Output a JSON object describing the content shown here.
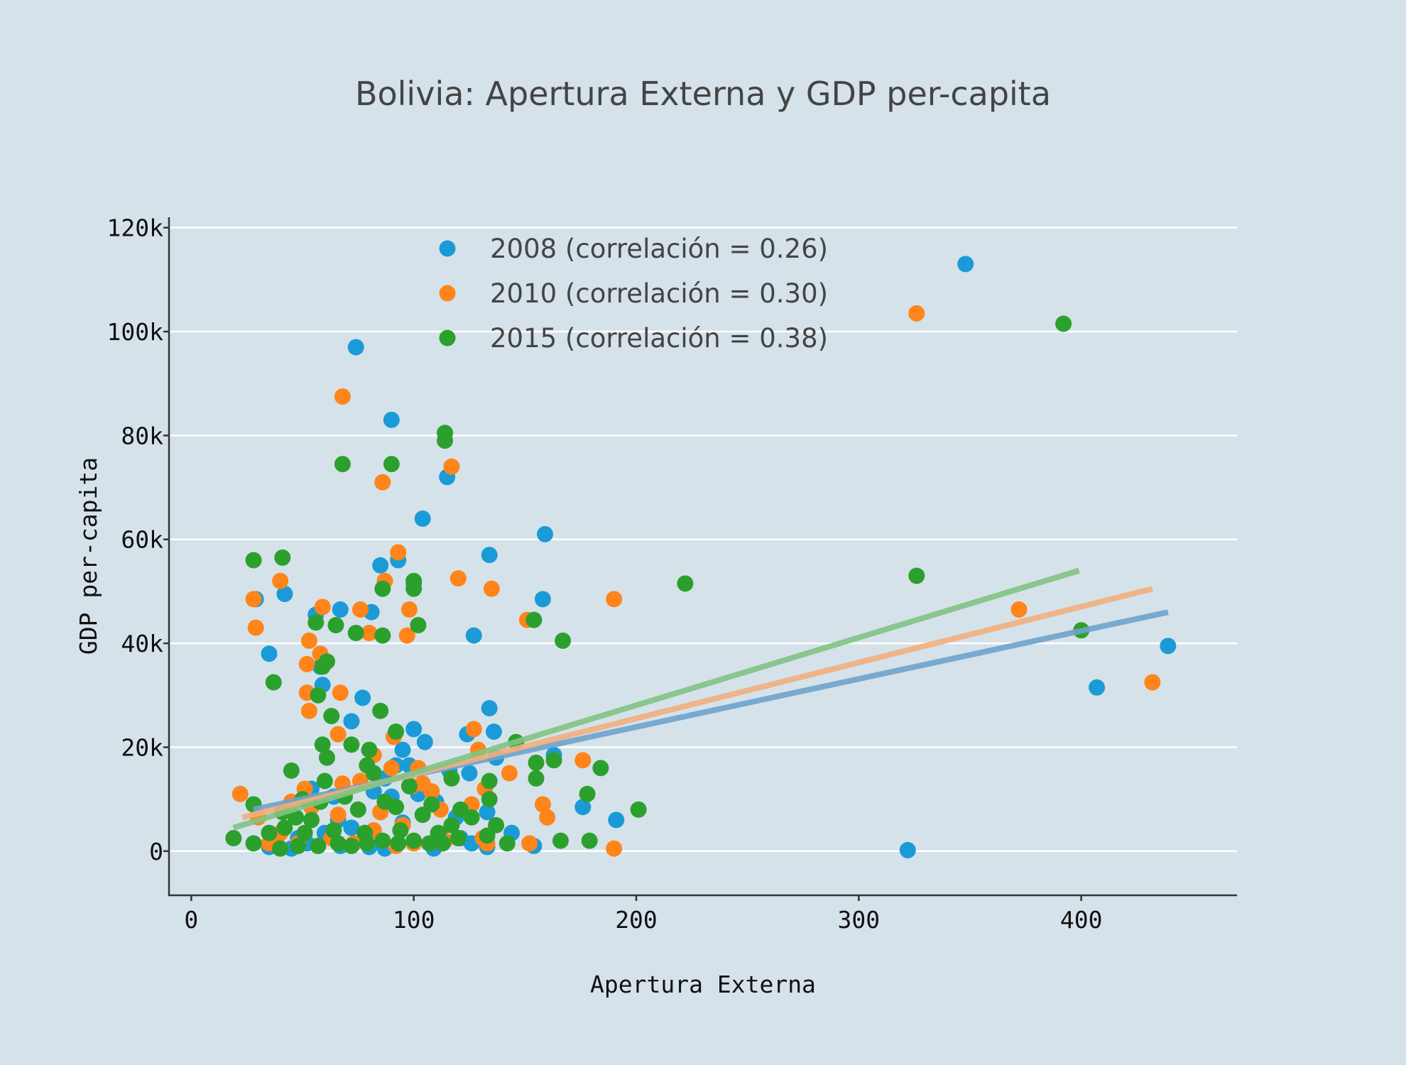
{
  "chart_data": {
    "type": "scatter",
    "title": "Bolivia: Apertura Externa y GDP per-capita",
    "xlabel": "Apertura Externa",
    "ylabel": "GDP per-capita",
    "xlim": [
      -10,
      470
    ],
    "ylim": [
      -8500,
      122000
    ],
    "xticks": [
      0,
      100,
      200,
      300,
      400
    ],
    "xtick_labels": [
      "0",
      "100",
      "200",
      "300",
      "400"
    ],
    "yticks": [
      0,
      20000,
      40000,
      60000,
      80000,
      100000,
      120000
    ],
    "ytick_labels": [
      "0",
      "20k",
      "40k",
      "60k",
      "80k",
      "100k",
      "120k"
    ],
    "grid": "horizontal",
    "legend_position": "top-center",
    "series": [
      {
        "name": "2008 (correlación = 0.26)",
        "color": "#1a9bd7",
        "trend_color": "#6fa3cc",
        "trend": [
          [
            28,
            8000
          ],
          [
            439,
            46000
          ]
        ],
        "points": [
          [
            74,
            97000
          ],
          [
            90,
            83000
          ],
          [
            115,
            72000
          ],
          [
            104,
            64000
          ],
          [
            159,
            61000
          ],
          [
            134,
            57000
          ],
          [
            85,
            55000
          ],
          [
            93,
            56000
          ],
          [
            100,
            51500
          ],
          [
            29,
            48500
          ],
          [
            42,
            49500
          ],
          [
            56,
            45500
          ],
          [
            67,
            46500
          ],
          [
            81,
            46000
          ],
          [
            158,
            48500
          ],
          [
            127,
            41500
          ],
          [
            35,
            38000
          ],
          [
            58,
            35500
          ],
          [
            59,
            32000
          ],
          [
            77,
            29500
          ],
          [
            72,
            25000
          ],
          [
            134,
            27500
          ],
          [
            136,
            23000
          ],
          [
            100,
            23500
          ],
          [
            105,
            21000
          ],
          [
            124,
            22500
          ],
          [
            95,
            19500
          ],
          [
            92,
            16500
          ],
          [
            98,
            16500
          ],
          [
            116,
            15500
          ],
          [
            125,
            15000
          ],
          [
            137,
            18000
          ],
          [
            163,
            18500
          ],
          [
            87,
            14000
          ],
          [
            54,
            12000
          ],
          [
            64,
            10500
          ],
          [
            82,
            11500
          ],
          [
            90,
            10500
          ],
          [
            102,
            11000
          ],
          [
            110,
            9500
          ],
          [
            176,
            8500
          ],
          [
            191,
            6000
          ],
          [
            133,
            7500
          ],
          [
            119,
            6500
          ],
          [
            95,
            5500
          ],
          [
            72,
            4500
          ],
          [
            60,
            3500
          ],
          [
            48,
            2500
          ],
          [
            38,
            2000
          ],
          [
            52,
            1500
          ],
          [
            67,
            1000
          ],
          [
            80,
            800
          ],
          [
            87,
            500
          ],
          [
            109,
            500
          ],
          [
            126,
            1500
          ],
          [
            133,
            800
          ],
          [
            144,
            3500
          ],
          [
            154,
            1000
          ],
          [
            66,
            6000
          ],
          [
            112,
            3000
          ],
          [
            121,
            2500
          ],
          [
            322,
            200
          ],
          [
            348,
            113000
          ],
          [
            407,
            31500
          ],
          [
            439,
            39500
          ],
          [
            35,
            800
          ],
          [
            45,
            500
          ]
        ]
      },
      {
        "name": "2010 (correlación = 0.30)",
        "color": "#ff8419",
        "trend_color": "#f2b07e",
        "trend": [
          [
            23,
            6500
          ],
          [
            432,
            50500
          ]
        ],
        "points": [
          [
            68,
            87500
          ],
          [
            86,
            71000
          ],
          [
            117,
            74000
          ],
          [
            93,
            57500
          ],
          [
            87,
            52000
          ],
          [
            120,
            52500
          ],
          [
            135,
            50500
          ],
          [
            40,
            52000
          ],
          [
            28,
            48500
          ],
          [
            59,
            47000
          ],
          [
            76,
            46500
          ],
          [
            98,
            46500
          ],
          [
            151,
            44500
          ],
          [
            190,
            48500
          ],
          [
            29,
            43000
          ],
          [
            53,
            40500
          ],
          [
            80,
            42000
          ],
          [
            97,
            41500
          ],
          [
            58,
            38000
          ],
          [
            52,
            36000
          ],
          [
            67,
            30500
          ],
          [
            52,
            30500
          ],
          [
            53,
            27000
          ],
          [
            66,
            22500
          ],
          [
            91,
            22000
          ],
          [
            127,
            23500
          ],
          [
            129,
            19500
          ],
          [
            82,
            18500
          ],
          [
            90,
            16000
          ],
          [
            102,
            16000
          ],
          [
            143,
            15000
          ],
          [
            176,
            17500
          ],
          [
            22,
            11000
          ],
          [
            30,
            6500
          ],
          [
            51,
            12000
          ],
          [
            68,
            13000
          ],
          [
            76,
            13500
          ],
          [
            99,
            12500
          ],
          [
            104,
            13000
          ],
          [
            108,
            11500
          ],
          [
            132,
            12000
          ],
          [
            158,
            9000
          ],
          [
            160,
            6500
          ],
          [
            45,
            9500
          ],
          [
            54,
            8500
          ],
          [
            66,
            7000
          ],
          [
            85,
            7500
          ],
          [
            112,
            8000
          ],
          [
            126,
            9000
          ],
          [
            40,
            3500
          ],
          [
            48,
            1500
          ],
          [
            63,
            2500
          ],
          [
            73,
            1500
          ],
          [
            92,
            1000
          ],
          [
            100,
            1500
          ],
          [
            114,
            2000
          ],
          [
            131,
            2500
          ],
          [
            133,
            1500
          ],
          [
            152,
            1500
          ],
          [
            190,
            500
          ],
          [
            35,
            1500
          ],
          [
            82,
            4000
          ],
          [
            95,
            5000
          ],
          [
            326,
            103500
          ],
          [
            372,
            46500
          ],
          [
            432,
            32500
          ]
        ]
      },
      {
        "name": "2015 (correlación = 0.38)",
        "color": "#2ca02c",
        "trend_color": "#82c483",
        "trend": [
          [
            19,
            4500
          ],
          [
            399,
            54000
          ]
        ],
        "points": [
          [
            114,
            80500
          ],
          [
            114,
            79000
          ],
          [
            68,
            74500
          ],
          [
            90,
            74500
          ],
          [
            28,
            56000
          ],
          [
            41,
            56500
          ],
          [
            100,
            52000
          ],
          [
            100,
            50500
          ],
          [
            86,
            50500
          ],
          [
            222,
            51500
          ],
          [
            56,
            44000
          ],
          [
            65,
            43500
          ],
          [
            74,
            42000
          ],
          [
            86,
            41500
          ],
          [
            102,
            43500
          ],
          [
            154,
            44500
          ],
          [
            167,
            40500
          ],
          [
            61,
            36500
          ],
          [
            59,
            35500
          ],
          [
            37,
            32500
          ],
          [
            57,
            30000
          ],
          [
            63,
            26000
          ],
          [
            85,
            27000
          ],
          [
            59,
            20500
          ],
          [
            72,
            20500
          ],
          [
            92,
            23000
          ],
          [
            146,
            21000
          ],
          [
            80,
            19500
          ],
          [
            61,
            18000
          ],
          [
            79,
            16500
          ],
          [
            82,
            15000
          ],
          [
            45,
            15500
          ],
          [
            155,
            17000
          ],
          [
            163,
            17500
          ],
          [
            184,
            16000
          ],
          [
            117,
            14000
          ],
          [
            134,
            13500
          ],
          [
            155,
            14000
          ],
          [
            98,
            12500
          ],
          [
            60,
            13500
          ],
          [
            28,
            9000
          ],
          [
            50,
            10000
          ],
          [
            58,
            9500
          ],
          [
            69,
            10500
          ],
          [
            87,
            9500
          ],
          [
            108,
            9000
          ],
          [
            121,
            8000
          ],
          [
            134,
            10000
          ],
          [
            178,
            11000
          ],
          [
            201,
            8000
          ],
          [
            41,
            7500
          ],
          [
            47,
            6500
          ],
          [
            54,
            6000
          ],
          [
            75,
            8000
          ],
          [
            92,
            8500
          ],
          [
            104,
            7000
          ],
          [
            126,
            6500
          ],
          [
            42,
            4500
          ],
          [
            51,
            3500
          ],
          [
            64,
            4000
          ],
          [
            78,
            3500
          ],
          [
            94,
            4000
          ],
          [
            111,
            3500
          ],
          [
            117,
            5000
          ],
          [
            137,
            5000
          ],
          [
            19,
            2500
          ],
          [
            28,
            1500
          ],
          [
            35,
            3500
          ],
          [
            40,
            500
          ],
          [
            48,
            1000
          ],
          [
            57,
            1000
          ],
          [
            66,
            1500
          ],
          [
            72,
            1000
          ],
          [
            79,
            1500
          ],
          [
            86,
            2000
          ],
          [
            93,
            1500
          ],
          [
            100,
            2000
          ],
          [
            107,
            1500
          ],
          [
            113,
            1500
          ],
          [
            120,
            2500
          ],
          [
            133,
            3000
          ],
          [
            142,
            1500
          ],
          [
            166,
            2000
          ],
          [
            179,
            2000
          ],
          [
            326,
            53000
          ],
          [
            392,
            101500
          ],
          [
            400,
            42500
          ]
        ]
      }
    ]
  }
}
